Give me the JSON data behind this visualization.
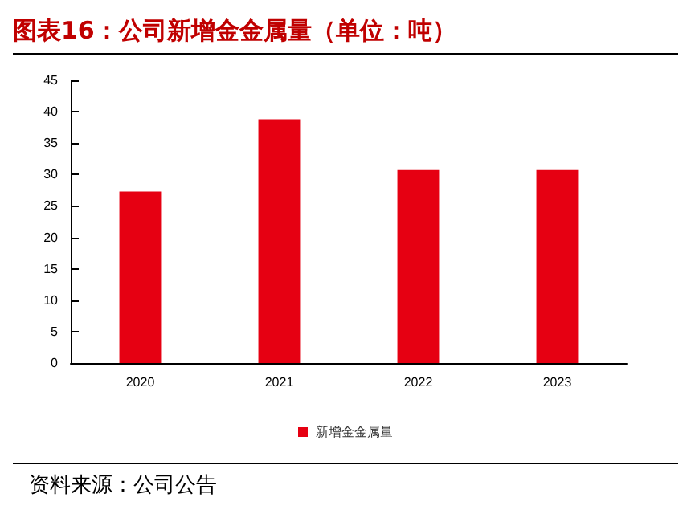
{
  "chart_data": {
    "type": "bar",
    "title": "图表16：公司新增金金属量（单位：吨）",
    "categories": [
      "2020",
      "2021",
      "2022",
      "2023"
    ],
    "series": [
      {
        "name": "新增金金属量",
        "color": "#e60012",
        "values": [
          27.3,
          38.8,
          30.7,
          30.7
        ]
      }
    ],
    "ylim": [
      0,
      45
    ],
    "yticks": [
      0,
      5,
      10,
      15,
      20,
      25,
      30,
      35,
      40,
      45
    ],
    "grid": false,
    "legend": "bottom",
    "annotations": [
      "资料来源：公司公告"
    ]
  }
}
